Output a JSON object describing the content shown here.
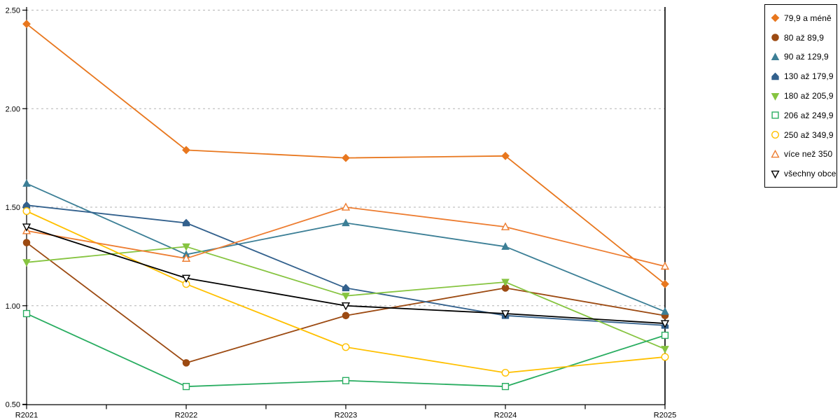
{
  "page": {
    "background": "#ffffff"
  },
  "chart_data": {
    "type": "line",
    "title": "",
    "xlabel": "",
    "ylabel": "",
    "categories": [
      "R2021",
      "R2022",
      "R2023",
      "R2024",
      "R2025"
    ],
    "y_axis": {
      "min": 0.5,
      "max": 2.5,
      "tick_values": [
        0.5,
        1.0,
        1.5,
        2.0,
        2.5
      ],
      "tick_labels": [
        "0.50",
        "1.00",
        "1.50",
        "2.00",
        "2.50"
      ]
    },
    "grid": {
      "horizontal_dashed_at": [
        1.0,
        1.5,
        2.0,
        2.5
      ],
      "color": "#b3b3b3",
      "style": "dashed"
    },
    "legend": {
      "position": "top-right",
      "border_color": "#000000",
      "background": "#ffffff"
    },
    "series": [
      {
        "name": "79,9 a méně",
        "marker": "diamond",
        "fill": "solid",
        "color": "#e8771e",
        "values": [
          2.43,
          1.79,
          1.75,
          1.76,
          1.11
        ]
      },
      {
        "name": "80 až 89,9",
        "marker": "circle",
        "fill": "solid",
        "color": "#9c4a12",
        "values": [
          1.32,
          0.71,
          0.95,
          1.09,
          0.95
        ]
      },
      {
        "name": "90 až 129,9",
        "marker": "triangle-up",
        "fill": "solid",
        "color": "#3c7f96",
        "values": [
          1.62,
          1.26,
          1.42,
          1.3,
          0.97
        ]
      },
      {
        "name": "130 až 179,9",
        "marker": "pentagon",
        "fill": "solid",
        "color": "#33618d",
        "values": [
          1.51,
          1.42,
          1.09,
          0.95,
          0.9
        ]
      },
      {
        "name": "180 až 205,9",
        "marker": "triangle-down",
        "fill": "solid",
        "color": "#86c440",
        "values": [
          1.22,
          1.3,
          1.05,
          1.12,
          0.78
        ]
      },
      {
        "name": "206 až 249,9",
        "marker": "square",
        "fill": "open",
        "color": "#29ad61",
        "values": [
          0.96,
          0.59,
          0.62,
          0.59,
          0.85
        ]
      },
      {
        "name": "250 až 349,9",
        "marker": "circle",
        "fill": "open",
        "color": "#ffc000",
        "values": [
          1.48,
          1.11,
          0.79,
          0.66,
          0.74
        ]
      },
      {
        "name": "více než 350",
        "marker": "triangle-up",
        "fill": "open",
        "color": "#ed7d31",
        "values": [
          1.38,
          1.24,
          1.5,
          1.4,
          1.2
        ]
      },
      {
        "name": "všechny obce",
        "marker": "triangle-down",
        "fill": "open",
        "color": "#000000",
        "values": [
          1.4,
          1.14,
          1.0,
          0.96,
          0.91
        ]
      }
    ]
  }
}
